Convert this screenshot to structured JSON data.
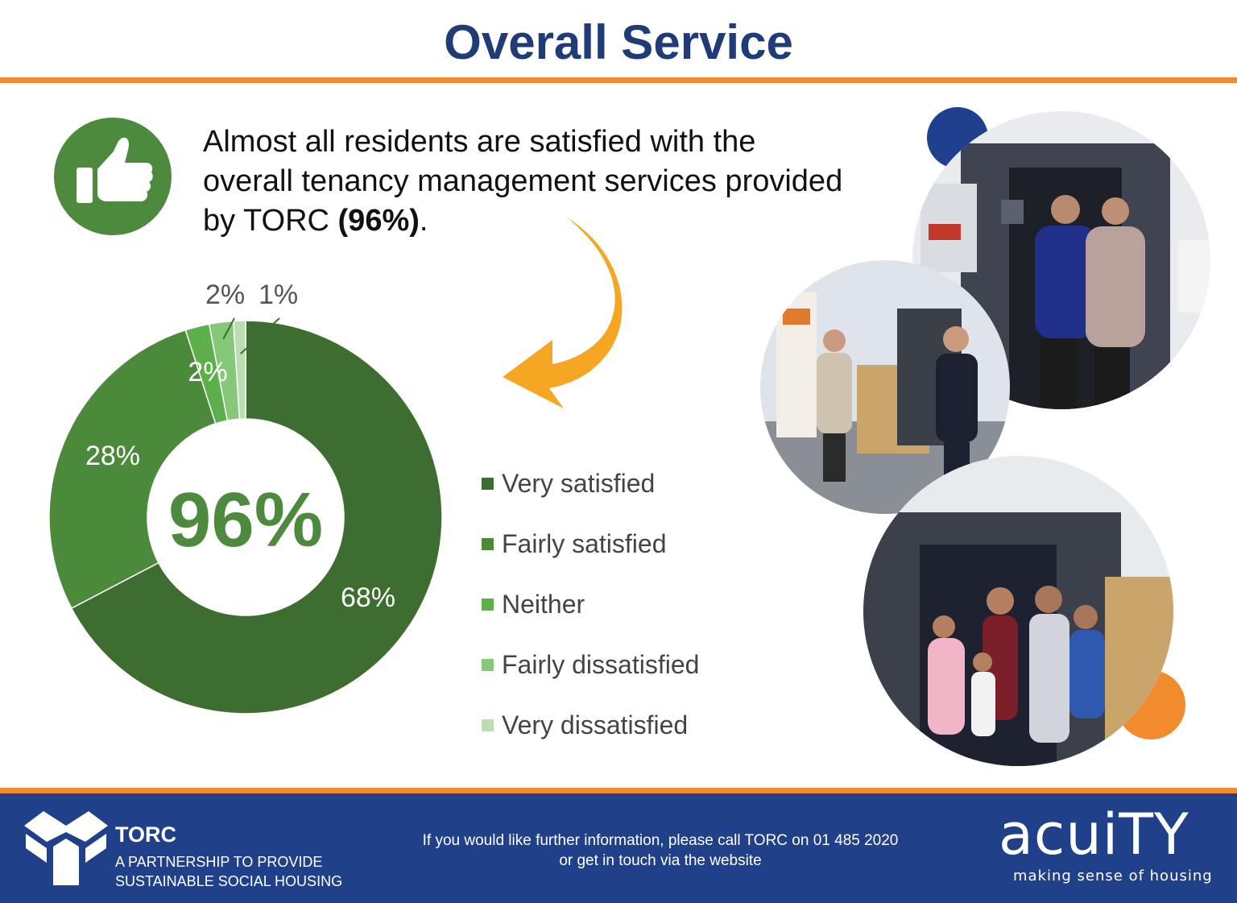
{
  "header": {
    "title": "Overall Service"
  },
  "headline": {
    "line1": "Almost all residents are satisfied with the",
    "line2": "overall tenancy management services provided",
    "line3_prefix": "by TORC ",
    "line3_bold": "(96%)",
    "line3_suffix": "."
  },
  "icons": {
    "thumb": "thumbs-up-icon",
    "arrow": "curved-arrow-icon"
  },
  "colors": {
    "title": "#1f3c78",
    "accent_orange": "#f28a2e",
    "footer_blue": "#20408a",
    "thumb_green": "#4e8a3d",
    "arrow": "#f5a623"
  },
  "chart_data": {
    "type": "pie",
    "variant": "donut",
    "center_label": "96%",
    "categories": [
      "Very satisfied",
      "Fairly satisfied",
      "Neither",
      "Fairly dissatisfied",
      "Very dissatisfied"
    ],
    "values": [
      68,
      28,
      2,
      2,
      1
    ],
    "value_labels": [
      "68%",
      "28%",
      "2%",
      "2%",
      "1%"
    ],
    "colors": [
      "#3e6e2f",
      "#4b8a3a",
      "#5caf4b",
      "#86c779",
      "#b9dfb0"
    ],
    "legend_position": "right"
  },
  "footer": {
    "org_name": "TORC",
    "org_tagline_1": "A PARTNERSHIP TO PROVIDE",
    "org_tagline_2": "SUSTAINABLE SOCIAL HOUSING",
    "info_line1": "If you would like further information, please call TORC on 01 485 2020",
    "info_line2": "or get in touch via the website",
    "partner_name": "acuiTY",
    "partner_tagline": "making sense of housing"
  }
}
